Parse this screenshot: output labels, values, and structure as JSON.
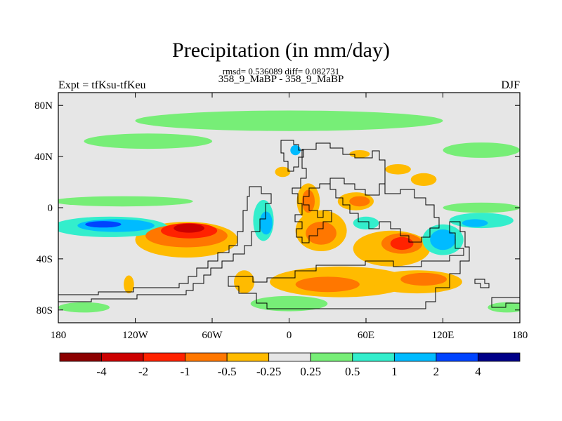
{
  "title": "Precipitation (in mm/day)",
  "stats_line": "rmsd= 0.536089 diff= 0.082731",
  "periods_line": "358_9_MaBP - 358_9_MaBP",
  "left_label": "Expt = tfKsu-tfKeu",
  "right_label": "DJF",
  "axes": {
    "y_ticks": [
      "80N",
      "40N",
      "0",
      "40S",
      "80S"
    ],
    "y_values": [
      80,
      40,
      0,
      -40,
      -80
    ],
    "x_ticks": [
      "180",
      "120W",
      "60W",
      "0",
      "60E",
      "120E",
      "180"
    ],
    "x_values": [
      -180,
      -120,
      -60,
      0,
      60,
      120,
      180
    ],
    "lon_range": [
      -180,
      180
    ],
    "lat_range": [
      -90,
      90
    ]
  },
  "colorbar": {
    "labels": [
      "-4",
      "-2",
      "-1",
      "-0.5",
      "-0.25",
      "0.25",
      "0.5",
      "1",
      "2",
      "4"
    ],
    "colors": [
      "#8b0000",
      "#cc0000",
      "#ff2200",
      "#ff7700",
      "#ffbb00",
      "#e6e6e6",
      "#77ee77",
      "#33eecc",
      "#00bbff",
      "#0044ff",
      "#000088"
    ]
  },
  "chart_data": {
    "type": "heatmap",
    "title": "Precipitation (in mm/day)",
    "subtitle": "358_9_MaBP - 358_9_MaBP",
    "levels": [
      -4,
      -2,
      -1,
      -0.5,
      -0.25,
      0.25,
      0.5,
      1,
      2,
      4
    ],
    "rmsd": 0.536089,
    "diff": 0.082731,
    "regions": [
      {
        "level_index": 2,
        "lon": -78,
        "lat": -18,
        "rlon": 22,
        "rlat": 6
      },
      {
        "level_index": 1,
        "lon": -78,
        "lat": -16,
        "rlon": 12,
        "rlat": 3.5
      },
      {
        "level_index": 3,
        "lon": -80,
        "lat": -22,
        "rlon": 32,
        "rlat": 9
      },
      {
        "level_index": 4,
        "lon": -80,
        "lat": -25,
        "rlon": 40,
        "rlat": 14
      },
      {
        "level_index": 3,
        "lon": 88,
        "lat": -28,
        "rlon": 16,
        "rlat": 8
      },
      {
        "level_index": 2,
        "lon": 88,
        "lat": -28,
        "rlon": 9,
        "rlat": 5
      },
      {
        "level_index": 4,
        "lon": 80,
        "lat": -32,
        "rlon": 30,
        "rlat": 14
      },
      {
        "level_index": 3,
        "lon": 25,
        "lat": -20,
        "rlon": 12,
        "rlat": 9
      },
      {
        "level_index": 4,
        "lon": 25,
        "lat": -18,
        "rlon": 20,
        "rlat": 16
      },
      {
        "level_index": 4,
        "lon": 40,
        "lat": -58,
        "rlon": 55,
        "rlat": 12
      },
      {
        "level_index": 3,
        "lon": 30,
        "lat": -60,
        "rlon": 25,
        "rlat": 6
      },
      {
        "level_index": 4,
        "lon": 100,
        "lat": -58,
        "rlon": 35,
        "rlat": 9
      },
      {
        "level_index": 3,
        "lon": 105,
        "lat": -56,
        "rlon": 18,
        "rlat": 5
      },
      {
        "level_index": 3,
        "lon": 15,
        "lat": 5,
        "rlon": 5,
        "rlat": 9
      },
      {
        "level_index": 4,
        "lon": 15,
        "lat": 5,
        "rlon": 9,
        "rlat": 14
      },
      {
        "level_index": 3,
        "lon": 55,
        "lat": 5,
        "rlon": 8,
        "rlat": 4
      },
      {
        "level_index": 4,
        "lon": 52,
        "lat": 5,
        "rlon": 14,
        "rlat": 7
      },
      {
        "level_index": 4,
        "lon": 55,
        "lat": 42,
        "rlon": 8,
        "rlat": 3
      },
      {
        "level_index": 4,
        "lon": -5,
        "lat": 28,
        "rlon": 6,
        "rlat": 4
      },
      {
        "level_index": 4,
        "lon": 85,
        "lat": 30,
        "rlon": 10,
        "rlat": 4
      },
      {
        "level_index": 4,
        "lon": 105,
        "lat": 22,
        "rlon": 10,
        "rlat": 5
      },
      {
        "level_index": 4,
        "lon": -35,
        "lat": -58,
        "rlon": 8,
        "rlat": 9
      },
      {
        "level_index": 4,
        "lon": -125,
        "lat": -60,
        "rlon": 4,
        "rlat": 7
      },
      {
        "level_index": 8,
        "lon": -135,
        "lat": -14,
        "rlon": 30,
        "rlat": 5
      },
      {
        "level_index": 9,
        "lon": -145,
        "lat": -13,
        "rlon": 14,
        "rlat": 2.5
      },
      {
        "level_index": 7,
        "lon": -140,
        "lat": -15,
        "rlon": 45,
        "rlat": 8
      },
      {
        "level_index": 6,
        "lon": -130,
        "lat": 5,
        "rlon": 55,
        "rlat": 4
      },
      {
        "level_index": 7,
        "lon": -20,
        "lat": -10,
        "rlon": 8,
        "rlat": 16
      },
      {
        "level_index": 8,
        "lon": -18,
        "lat": -12,
        "rlon": 5,
        "rlat": 9
      },
      {
        "level_index": 8,
        "lon": 5,
        "lat": 45,
        "rlon": 4,
        "rlat": 4
      },
      {
        "level_index": 7,
        "lon": 60,
        "lat": -12,
        "rlon": 10,
        "rlat": 5
      },
      {
        "level_index": 8,
        "lon": 120,
        "lat": -25,
        "rlon": 10,
        "rlat": 8
      },
      {
        "level_index": 7,
        "lon": 120,
        "lat": -25,
        "rlon": 16,
        "rlat": 12
      },
      {
        "level_index": 7,
        "lon": 150,
        "lat": -10,
        "rlon": 25,
        "rlat": 6
      },
      {
        "level_index": 8,
        "lon": 145,
        "lat": -12,
        "rlon": 10,
        "rlat": 3
      },
      {
        "level_index": 6,
        "lon": 150,
        "lat": 0,
        "rlon": 30,
        "rlat": 4
      },
      {
        "level_index": 6,
        "lon": 0,
        "lat": 68,
        "rlon": 120,
        "rlat": 8
      },
      {
        "level_index": 6,
        "lon": -110,
        "lat": 52,
        "rlon": 50,
        "rlat": 6
      },
      {
        "level_index": 6,
        "lon": 150,
        "lat": 45,
        "rlon": 30,
        "rlat": 6
      },
      {
        "level_index": 6,
        "lon": 0,
        "lat": -75,
        "rlon": 30,
        "rlat": 6
      },
      {
        "level_index": 6,
        "lon": -160,
        "lat": -78,
        "rlon": 20,
        "rlat": 4
      },
      {
        "level_index": 6,
        "lon": 170,
        "lat": -78,
        "rlon": 15,
        "rlat": 4
      }
    ]
  }
}
